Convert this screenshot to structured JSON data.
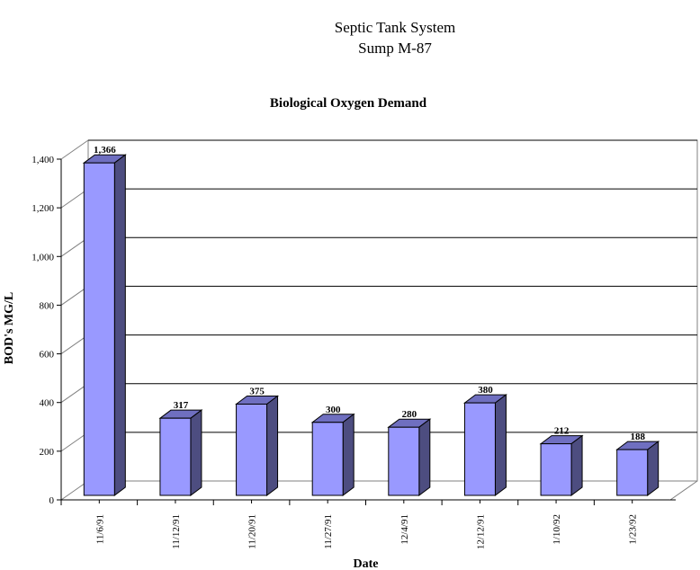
{
  "chart_data": {
    "type": "bar",
    "title": "Septic Tank System",
    "subtitle": "Sump M-87",
    "chart_title": "Biological Oxygen Demand",
    "xlabel": "Date",
    "ylabel": "BOD's MG/L",
    "categories": [
      "11/6/91",
      "11/12/91",
      "11/20/91",
      "11/27/91",
      "12/4/91",
      "12/12/91",
      "1/10/92",
      "1/23/92"
    ],
    "values": [
      1366,
      317,
      375,
      300,
      280,
      380,
      212,
      188
    ],
    "value_labels": [
      "1,366",
      "317",
      "375",
      "300",
      "280",
      "380",
      "212",
      "188"
    ],
    "ylim": [
      0,
      1400
    ],
    "yticks": [
      "0",
      "200",
      "400",
      "600",
      "800",
      "1,000",
      "1,200",
      "1,400"
    ],
    "grid": true,
    "legend": "none",
    "bar_color": "#9999ff"
  }
}
